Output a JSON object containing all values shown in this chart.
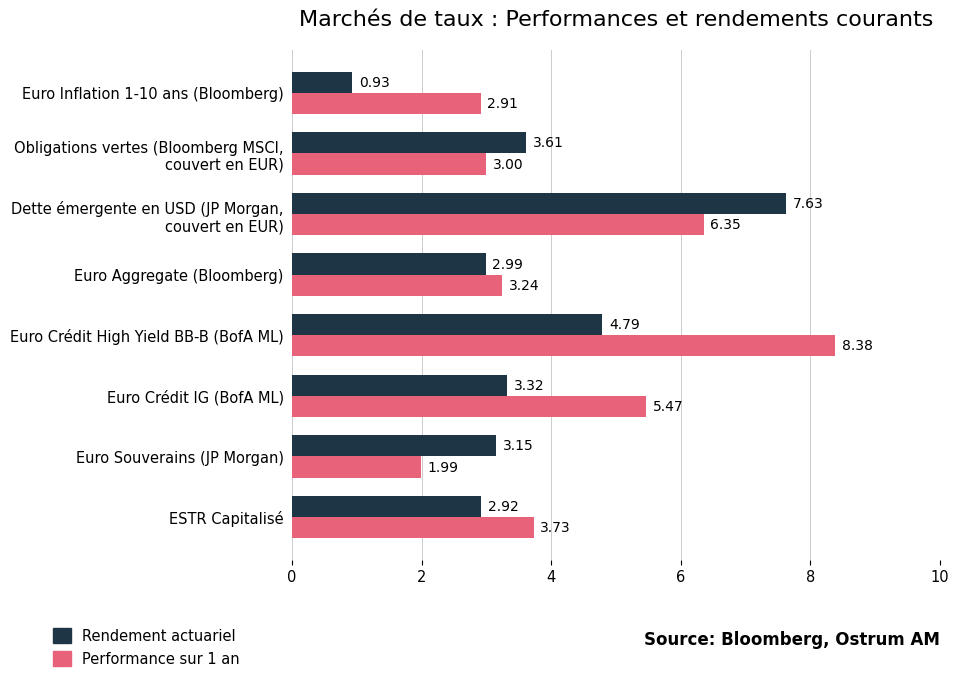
{
  "title": "Marchés de taux : Performances et rendements courants",
  "categories": [
    "ESTR Capitalisé",
    "Euro Souverains (JP Morgan)",
    "Euro Crédit IG (BofA ML)",
    "Euro Crédit High Yield BB-B (BofA ML)",
    "Euro Aggregate (Bloomberg)",
    "Dette émergente en USD (JP Morgan,\ncouvert en EUR)",
    "Obligations vertes (Bloomberg MSCI,\ncouvert en EUR)",
    "Euro Inflation 1-10 ans (Bloomberg)"
  ],
  "rendement_actuariel": [
    2.92,
    3.15,
    3.32,
    4.79,
    2.99,
    7.63,
    3.61,
    0.93
  ],
  "performance_1an": [
    3.73,
    1.99,
    5.47,
    8.38,
    3.24,
    6.35,
    3.0,
    2.91
  ],
  "color_rendement": "#1d3545",
  "color_performance": "#e8637a",
  "xlim": [
    0,
    10
  ],
  "xticks": [
    0,
    2,
    4,
    6,
    8,
    10
  ],
  "legend_rendement": "Rendement actuariel",
  "legend_performance": "Performance sur 1 an",
  "source_text": "Source: Bloomberg, Ostrum AM",
  "bar_height": 0.35,
  "label_fontsize": 10.5,
  "title_fontsize": 16,
  "tick_fontsize": 10.5,
  "value_fontsize": 10,
  "source_fontsize": 12,
  "background_color": "#ffffff"
}
